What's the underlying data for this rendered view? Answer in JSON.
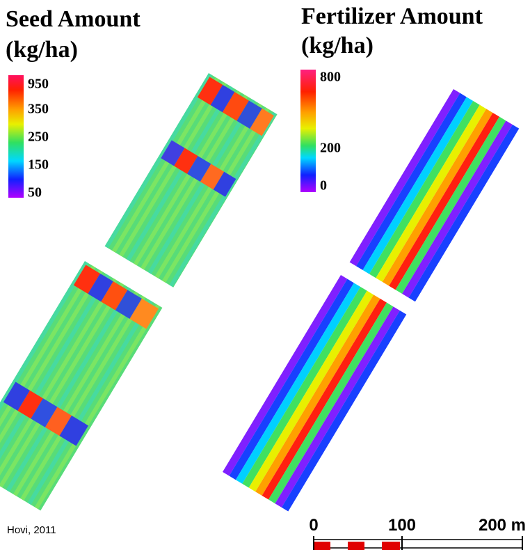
{
  "left_map": {
    "title_line1": "Seed Amount",
    "title_line2": "(kg/ha)",
    "legend_labels": [
      "950",
      "350",
      "250",
      "150",
      "50"
    ]
  },
  "right_map": {
    "title_line1": "Fertilizer Amount",
    "title_line2": "(kg/ha)",
    "legend_labels": [
      "800",
      "200",
      "0"
    ]
  },
  "source": "Hovi, 2011",
  "scale_bar": {
    "labels": [
      "0",
      "100",
      "200 m"
    ]
  }
}
